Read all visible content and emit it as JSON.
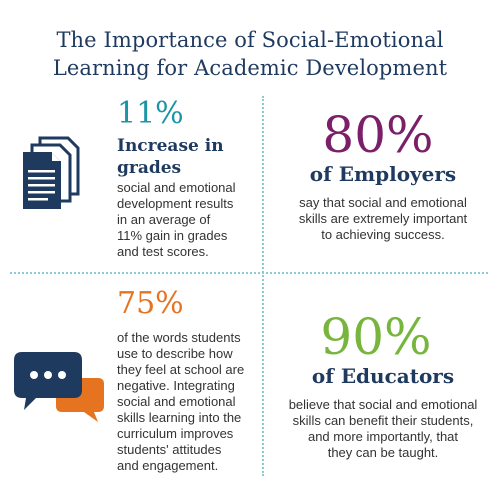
{
  "title": {
    "line1": "The Importance of Social-Emotional",
    "line2": "Learning for Academic Development"
  },
  "colors": {
    "title": "#1f3a5f",
    "teal": "#1b95a5",
    "purple": "#7a1f68",
    "orange": "#e5731f",
    "green": "#77b53d",
    "navy": "#1f3a5f",
    "divider": "#8ccbd2"
  },
  "stats": {
    "grades": {
      "value": "11%",
      "label_line1": "Increase in",
      "label_line2": "grades",
      "desc": [
        "social and emotional",
        "development results",
        "in an average of",
        "11% gain in grades",
        "and test scores."
      ],
      "icon": "documents-icon"
    },
    "employers": {
      "value": "80%",
      "label": "of Employers",
      "desc": [
        "say that social and emotional",
        "skills are extremely important",
        "to achieving success."
      ]
    },
    "words": {
      "value": "75%",
      "desc": [
        "of the words students",
        "use to describe how",
        "they feel at school are",
        "negative. Integrating",
        "social and emotional",
        "skills learning into the",
        "curriculum improves",
        "students' attitudes",
        "and engagement."
      ],
      "icon": "chat-bubbles-icon"
    },
    "educators": {
      "value": "90%",
      "label": "of Educators",
      "desc": [
        "believe that social and emotional",
        "skills can benefit their students,",
        "and more importantly, that",
        "they can be taught."
      ]
    }
  }
}
